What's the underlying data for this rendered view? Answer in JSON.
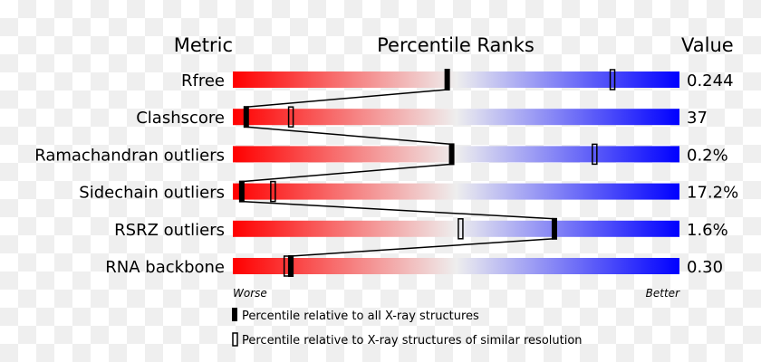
{
  "chart_data": {
    "type": "percentile-slider",
    "headers": {
      "metric": "Metric",
      "percentile": "Percentile Ranks",
      "value": "Value"
    },
    "axis_labels": {
      "left": "Worse",
      "right": "Better"
    },
    "xlim": [
      0,
      100
    ],
    "colors": {
      "worse": "#ff0000",
      "middle": "#eeeeee",
      "better": "#0000ff",
      "marker": "#000000"
    },
    "rows": [
      {
        "metric": "Rfree",
        "value": "0.244",
        "percentile_all": 48,
        "percentile_similar": 85
      },
      {
        "metric": "Clashscore",
        "value": "37",
        "percentile_all": 3,
        "percentile_similar": 13
      },
      {
        "metric": "Ramachandran outliers",
        "value": "0.2%",
        "percentile_all": 49,
        "percentile_similar": 81
      },
      {
        "metric": "Sidechain outliers",
        "value": "17.2%",
        "percentile_all": 2,
        "percentile_similar": 9
      },
      {
        "metric": "RSRZ outliers",
        "value": "1.6%",
        "percentile_all": 72,
        "percentile_similar": 51
      },
      {
        "metric": "RNA backbone",
        "value": "0.30",
        "percentile_all": 13,
        "percentile_similar": 12
      }
    ],
    "legend": [
      {
        "marker": "filled",
        "label": "Percentile relative to all X-ray structures"
      },
      {
        "marker": "open",
        "label": "Percentile relative to X-ray structures of similar resolution"
      }
    ]
  }
}
